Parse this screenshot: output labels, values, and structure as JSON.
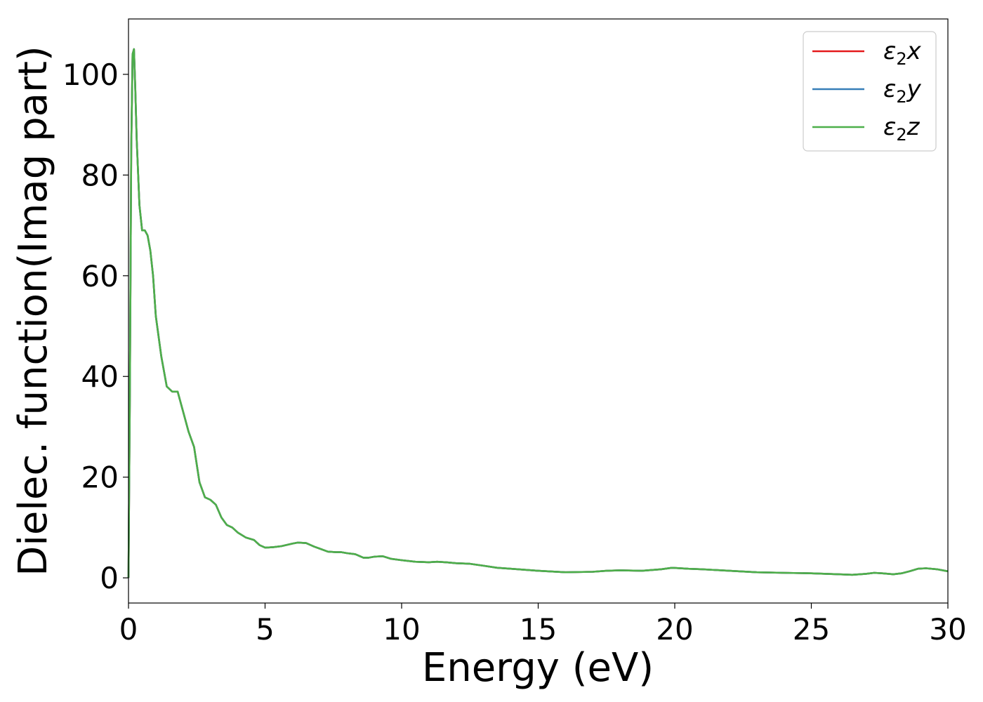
{
  "chart_data": {
    "type": "line",
    "xlabel": "Energy (eV)",
    "ylabel": "Dielec. function(Imag part)",
    "xlim": [
      0,
      30
    ],
    "ylim": [
      -5,
      111
    ],
    "xticks": [
      0,
      5,
      10,
      15,
      20,
      25,
      30
    ],
    "yticks": [
      0,
      20,
      40,
      60,
      80,
      100
    ],
    "grid": false,
    "legend_position": "top-right",
    "series": [
      {
        "name": "ε2x",
        "legend_base": "ε",
        "legend_sub": "2",
        "legend_suffix": "x",
        "color": "#e41a1c",
        "x": [
          0,
          0.05,
          0.1,
          0.15,
          0.2,
          0.25,
          0.3,
          0.4,
          0.5,
          0.6,
          0.7,
          0.8,
          0.9,
          1.0,
          1.2,
          1.4,
          1.6,
          1.8,
          2.0,
          2.2,
          2.4,
          2.6,
          2.8,
          3.0,
          3.2,
          3.4,
          3.6,
          3.8,
          4.0,
          4.3,
          4.6,
          4.8,
          5.0,
          5.3,
          5.6,
          6.0,
          6.2,
          6.5,
          6.8,
          7.0,
          7.3,
          7.6,
          7.8,
          8.0,
          8.3,
          8.6,
          8.8,
          9.0,
          9.3,
          9.6,
          10.0,
          10.5,
          11.0,
          11.3,
          11.6,
          12.0,
          12.5,
          13.0,
          13.5,
          14.0,
          15.0,
          16.0,
          17.0,
          17.5,
          18.0,
          18.8,
          19.5,
          19.9,
          20.5,
          21.0,
          22.0,
          23.0,
          24.0,
          25.0,
          26.0,
          26.5,
          27.0,
          27.3,
          27.6,
          28.0,
          28.3,
          28.6,
          28.9,
          29.2,
          29.6,
          30.0
        ],
        "y": [
          0,
          35,
          85,
          104,
          105,
          97,
          87,
          74,
          69,
          69,
          68,
          65,
          60,
          52,
          44,
          38,
          37,
          37,
          33,
          29,
          26,
          19,
          16,
          15.5,
          14.5,
          12,
          10.5,
          10,
          9,
          8,
          7.5,
          6.5,
          6,
          6.1,
          6.3,
          6.8,
          7,
          6.9,
          6.2,
          5.8,
          5.2,
          5.1,
          5.1,
          4.9,
          4.7,
          4.0,
          4.0,
          4.2,
          4.3,
          3.8,
          3.5,
          3.2,
          3.1,
          3.2,
          3.1,
          2.9,
          2.8,
          2.4,
          2.0,
          1.8,
          1.4,
          1.1,
          1.2,
          1.4,
          1.5,
          1.4,
          1.7,
          2.0,
          1.8,
          1.7,
          1.4,
          1.1,
          1.0,
          0.9,
          0.7,
          0.6,
          0.8,
          1.0,
          0.9,
          0.7,
          0.9,
          1.3,
          1.8,
          1.9,
          1.7,
          1.3
        ]
      },
      {
        "name": "ε2y",
        "legend_base": "ε",
        "legend_sub": "2",
        "legend_suffix": "y",
        "color": "#377eb8",
        "x": [
          0,
          0.05,
          0.1,
          0.15,
          0.2,
          0.25,
          0.3,
          0.4,
          0.5,
          0.6,
          0.7,
          0.8,
          0.9,
          1.0,
          1.2,
          1.4,
          1.6,
          1.8,
          2.0,
          2.2,
          2.4,
          2.6,
          2.8,
          3.0,
          3.2,
          3.4,
          3.6,
          3.8,
          4.0,
          4.3,
          4.6,
          4.8,
          5.0,
          5.3,
          5.6,
          6.0,
          6.2,
          6.5,
          6.8,
          7.0,
          7.3,
          7.6,
          7.8,
          8.0,
          8.3,
          8.6,
          8.8,
          9.0,
          9.3,
          9.6,
          10.0,
          10.5,
          11.0,
          11.3,
          11.6,
          12.0,
          12.5,
          13.0,
          13.5,
          14.0,
          15.0,
          16.0,
          17.0,
          17.5,
          18.0,
          18.8,
          19.5,
          19.9,
          20.5,
          21.0,
          22.0,
          23.0,
          24.0,
          25.0,
          26.0,
          26.5,
          27.0,
          27.3,
          27.6,
          28.0,
          28.3,
          28.6,
          28.9,
          29.2,
          29.6,
          30.0
        ],
        "y": [
          0,
          35,
          85,
          104,
          105,
          97,
          87,
          74,
          69,
          69,
          68,
          65,
          60,
          52,
          44,
          38,
          37,
          37,
          33,
          29,
          26,
          19,
          16,
          15.5,
          14.5,
          12,
          10.5,
          10,
          9,
          8,
          7.5,
          6.5,
          6,
          6.1,
          6.3,
          6.8,
          7,
          6.9,
          6.2,
          5.8,
          5.2,
          5.1,
          5.1,
          4.9,
          4.7,
          4.0,
          4.0,
          4.2,
          4.3,
          3.8,
          3.5,
          3.2,
          3.1,
          3.2,
          3.1,
          2.9,
          2.8,
          2.4,
          2.0,
          1.8,
          1.4,
          1.1,
          1.2,
          1.4,
          1.5,
          1.4,
          1.7,
          2.0,
          1.8,
          1.7,
          1.4,
          1.1,
          1.0,
          0.9,
          0.7,
          0.6,
          0.8,
          1.0,
          0.9,
          0.7,
          0.9,
          1.3,
          1.8,
          1.9,
          1.7,
          1.3
        ]
      },
      {
        "name": "ε2z",
        "legend_base": "ε",
        "legend_sub": "2",
        "legend_suffix": "z",
        "color": "#4daf4a",
        "x": [
          0,
          0.05,
          0.1,
          0.15,
          0.2,
          0.25,
          0.3,
          0.4,
          0.5,
          0.6,
          0.7,
          0.8,
          0.9,
          1.0,
          1.2,
          1.4,
          1.6,
          1.8,
          2.0,
          2.2,
          2.4,
          2.6,
          2.8,
          3.0,
          3.2,
          3.4,
          3.6,
          3.8,
          4.0,
          4.3,
          4.6,
          4.8,
          5.0,
          5.3,
          5.6,
          6.0,
          6.2,
          6.5,
          6.8,
          7.0,
          7.3,
          7.6,
          7.8,
          8.0,
          8.3,
          8.6,
          8.8,
          9.0,
          9.3,
          9.6,
          10.0,
          10.5,
          11.0,
          11.3,
          11.6,
          12.0,
          12.5,
          13.0,
          13.5,
          14.0,
          15.0,
          16.0,
          17.0,
          17.5,
          18.0,
          18.8,
          19.5,
          19.9,
          20.5,
          21.0,
          22.0,
          23.0,
          24.0,
          25.0,
          26.0,
          26.5,
          27.0,
          27.3,
          27.6,
          28.0,
          28.3,
          28.6,
          28.9,
          29.2,
          29.6,
          30.0
        ],
        "y": [
          0,
          35,
          85,
          104,
          105,
          97,
          87,
          74,
          69,
          69,
          68,
          65,
          60,
          52,
          44,
          38,
          37,
          37,
          33,
          29,
          26,
          19,
          16,
          15.5,
          14.5,
          12,
          10.5,
          10,
          9,
          8,
          7.5,
          6.5,
          6,
          6.1,
          6.3,
          6.8,
          7,
          6.9,
          6.2,
          5.8,
          5.2,
          5.1,
          5.1,
          4.9,
          4.7,
          4.0,
          4.0,
          4.2,
          4.3,
          3.8,
          3.5,
          3.2,
          3.1,
          3.2,
          3.1,
          2.9,
          2.8,
          2.4,
          2.0,
          1.8,
          1.4,
          1.1,
          1.2,
          1.4,
          1.5,
          1.4,
          1.7,
          2.0,
          1.8,
          1.7,
          1.4,
          1.1,
          1.0,
          0.9,
          0.7,
          0.6,
          0.8,
          1.0,
          0.9,
          0.7,
          0.9,
          1.3,
          1.8,
          1.9,
          1.7,
          1.3
        ]
      }
    ]
  }
}
